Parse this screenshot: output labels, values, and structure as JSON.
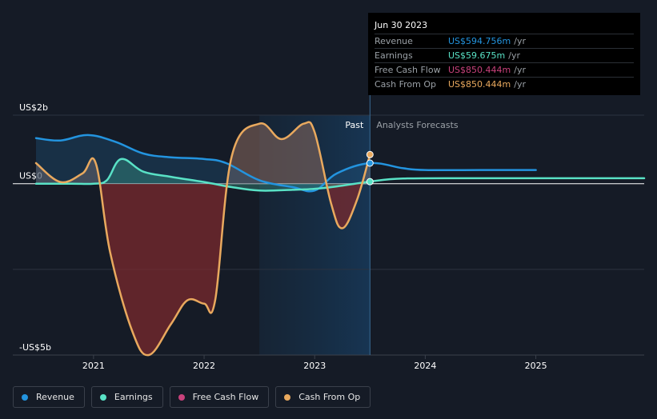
{
  "chart_data": {
    "type": "line",
    "y_axis": {
      "ticks": [
        {
          "label": "US$2b",
          "value": 2
        },
        {
          "label": "US$0",
          "value": 0
        },
        {
          "label": "-US$5b",
          "value": -5
        }
      ],
      "ylim": [
        -5,
        2
      ]
    },
    "x_axis": {
      "ticks": [
        2021,
        2022,
        2023,
        2024,
        2025
      ],
      "xlim": [
        2020.27,
        2025.98
      ]
    },
    "divider": {
      "x": 2023.5,
      "past_label": "Past",
      "forecast_label": "Analysts Forecasts",
      "shade_from": 2022.5
    },
    "series": [
      {
        "name": "Revenue",
        "color": "#2394df",
        "points": [
          [
            2020.48,
            1.33
          ],
          [
            2020.7,
            1.26
          ],
          [
            2020.95,
            1.42
          ],
          [
            2021.2,
            1.22
          ],
          [
            2021.45,
            0.88
          ],
          [
            2021.7,
            0.77
          ],
          [
            2022.0,
            0.72
          ],
          [
            2022.2,
            0.6
          ],
          [
            2022.5,
            0.1
          ],
          [
            2022.8,
            -0.1
          ],
          [
            2023.0,
            -0.2
          ],
          [
            2023.2,
            0.3
          ],
          [
            2023.5,
            0.6
          ],
          [
            2023.8,
            0.45
          ],
          [
            2024.0,
            0.4
          ],
          [
            2024.5,
            0.4
          ],
          [
            2025.0,
            0.4
          ]
        ]
      },
      {
        "name": "Earnings",
        "color": "#59e2c6",
        "points": [
          [
            2020.48,
            0
          ],
          [
            2020.8,
            0
          ],
          [
            2021.0,
            0
          ],
          [
            2021.12,
            0.1
          ],
          [
            2021.25,
            0.72
          ],
          [
            2021.45,
            0.35
          ],
          [
            2021.7,
            0.2
          ],
          [
            2022.0,
            0.05
          ],
          [
            2022.25,
            -0.1
          ],
          [
            2022.5,
            -0.2
          ],
          [
            2022.8,
            -0.18
          ],
          [
            2023.0,
            -0.15
          ],
          [
            2023.2,
            -0.08
          ],
          [
            2023.5,
            0.06
          ],
          [
            2023.8,
            0.15
          ],
          [
            2024.5,
            0.16
          ],
          [
            2025.0,
            0.16
          ],
          [
            2025.98,
            0.16
          ]
        ]
      },
      {
        "name": "Free Cash Flow",
        "color": "#c9427c",
        "points": []
      },
      {
        "name": "Cash From Op",
        "color": "#e9a95e",
        "points": [
          [
            2020.48,
            0.6
          ],
          [
            2020.7,
            0.05
          ],
          [
            2020.9,
            0.3
          ],
          [
            2021.02,
            0.6
          ],
          [
            2021.15,
            -2.0
          ],
          [
            2021.35,
            -4.3
          ],
          [
            2021.5,
            -5.0
          ],
          [
            2021.7,
            -4.1
          ],
          [
            2021.85,
            -3.4
          ],
          [
            2022.0,
            -3.5
          ],
          [
            2022.1,
            -3.4
          ],
          [
            2022.25,
            0.8
          ],
          [
            2022.5,
            1.75
          ],
          [
            2022.7,
            1.3
          ],
          [
            2022.9,
            1.75
          ],
          [
            2023.0,
            1.5
          ],
          [
            2023.15,
            -0.6
          ],
          [
            2023.25,
            -1.3
          ],
          [
            2023.38,
            -0.5
          ],
          [
            2023.5,
            0.85
          ]
        ]
      }
    ],
    "tooltip": {
      "date": "Jun 30 2023",
      "rows": [
        {
          "name": "Revenue",
          "value": "US$594.756m",
          "unit": "/yr",
          "color": "#2394df"
        },
        {
          "name": "Earnings",
          "value": "US$59.675m",
          "unit": "/yr",
          "color": "#59e2c6"
        },
        {
          "name": "Free Cash Flow",
          "value": "US$850.444m",
          "unit": "/yr",
          "color": "#c9427c"
        },
        {
          "name": "Cash From Op",
          "value": "US$850.444m",
          "unit": "/yr",
          "color": "#e9a95e"
        }
      ]
    }
  },
  "legend": [
    {
      "label": "Revenue",
      "color": "#2394df"
    },
    {
      "label": "Earnings",
      "color": "#59e2c6"
    },
    {
      "label": "Free Cash Flow",
      "color": "#c9427c"
    },
    {
      "label": "Cash From Op",
      "color": "#e9a95e"
    }
  ]
}
